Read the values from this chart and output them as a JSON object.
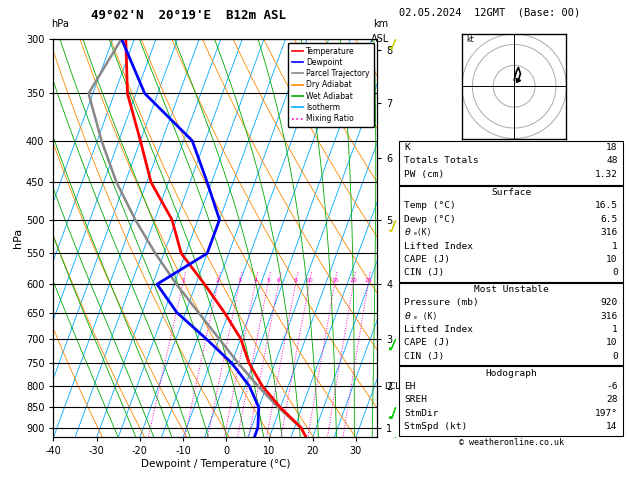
{
  "title": "49°02'N  20°19'E  B12m ASL",
  "date_label": "02.05.2024  12GMT  (Base: 00)",
  "ylabel_left": "hPa",
  "xlabel": "Dewpoint / Temperature (°C)",
  "pressure_levels": [
    300,
    350,
    400,
    450,
    500,
    550,
    600,
    650,
    700,
    750,
    800,
    850,
    900
  ],
  "temp_min": -40,
  "temp_max": 35,
  "temp_ticks": [
    -40,
    -30,
    -20,
    -10,
    0,
    10,
    20,
    30
  ],
  "km_ticks": [
    1,
    2,
    3,
    4,
    5,
    6,
    7,
    8
  ],
  "km_pressures": [
    900,
    800,
    700,
    600,
    500,
    420,
    360,
    310
  ],
  "mixing_ratio_values": [
    1,
    2,
    3,
    4,
    5,
    6,
    8,
    10,
    15,
    20,
    25
  ],
  "lcl_pressure": 800,
  "lcl_label": "LCL",
  "skew_factor": 0.45,
  "p_min": 300,
  "p_max": 925,
  "temp_profile": {
    "pressure": [
      925,
      900,
      850,
      800,
      750,
      700,
      650,
      600,
      550,
      500,
      450,
      400,
      350,
      300
    ],
    "temperature": [
      18.5,
      16.5,
      10.0,
      4.0,
      -1.0,
      -5.0,
      -11.0,
      -18.0,
      -26.0,
      -31.0,
      -39.0,
      -45.0,
      -52.0,
      -57.0
    ],
    "color": "#ff0000",
    "linewidth": 2.0
  },
  "dewp_profile": {
    "pressure": [
      925,
      900,
      850,
      800,
      750,
      700,
      650,
      600,
      550,
      500,
      450,
      400,
      350,
      300
    ],
    "temperature": [
      6.5,
      6.5,
      5.0,
      1.0,
      -5.0,
      -13.0,
      -22.0,
      -29.0,
      -20.0,
      -20.0,
      -26.0,
      -33.0,
      -48.0,
      -58.0
    ],
    "color": "#0000ff",
    "linewidth": 2.0
  },
  "parcel_profile": {
    "pressure": [
      900,
      850,
      800,
      750,
      700,
      650,
      600,
      550,
      500,
      450,
      400,
      350,
      300
    ],
    "temperature": [
      16.5,
      9.5,
      3.0,
      -3.5,
      -10.0,
      -17.0,
      -24.5,
      -32.0,
      -39.5,
      -47.0,
      -54.0,
      -61.0,
      -58.0
    ],
    "color": "#888888",
    "linewidth": 1.8
  },
  "legend_items": [
    {
      "label": "Temperature",
      "color": "#ff0000",
      "linestyle": "-"
    },
    {
      "label": "Dewpoint",
      "color": "#0000ff",
      "linestyle": "-"
    },
    {
      "label": "Parcel Trajectory",
      "color": "#888888",
      "linestyle": "-"
    },
    {
      "label": "Dry Adiabat",
      "color": "#ff8800",
      "linestyle": "-"
    },
    {
      "label": "Wet Adiabat",
      "color": "#00aa00",
      "linestyle": "-"
    },
    {
      "label": "Isotherm",
      "color": "#00aaff",
      "linestyle": "-"
    },
    {
      "label": "Mixing Ratio",
      "color": "#ff00cc",
      "linestyle": ":"
    }
  ],
  "info_panel": {
    "K": 18,
    "Totals_Totals": 48,
    "PW_cm": 1.32,
    "Surface": {
      "Temp_C": 16.5,
      "Dewp_C": 6.5,
      "theta_e_K": 316,
      "Lifted_Index": 1,
      "CAPE_J": 10,
      "CIN_J": 0
    },
    "Most_Unstable": {
      "Pressure_mb": 920,
      "theta_e_K": 316,
      "Lifted_Index": 1,
      "CAPE_J": 10,
      "CIN_J": 0
    },
    "Hodograph": {
      "EH": -6,
      "SREH": 28,
      "StmDir": 197,
      "StmSpd_kt": 14
    }
  },
  "footer": "© weatheronline.co.uk"
}
